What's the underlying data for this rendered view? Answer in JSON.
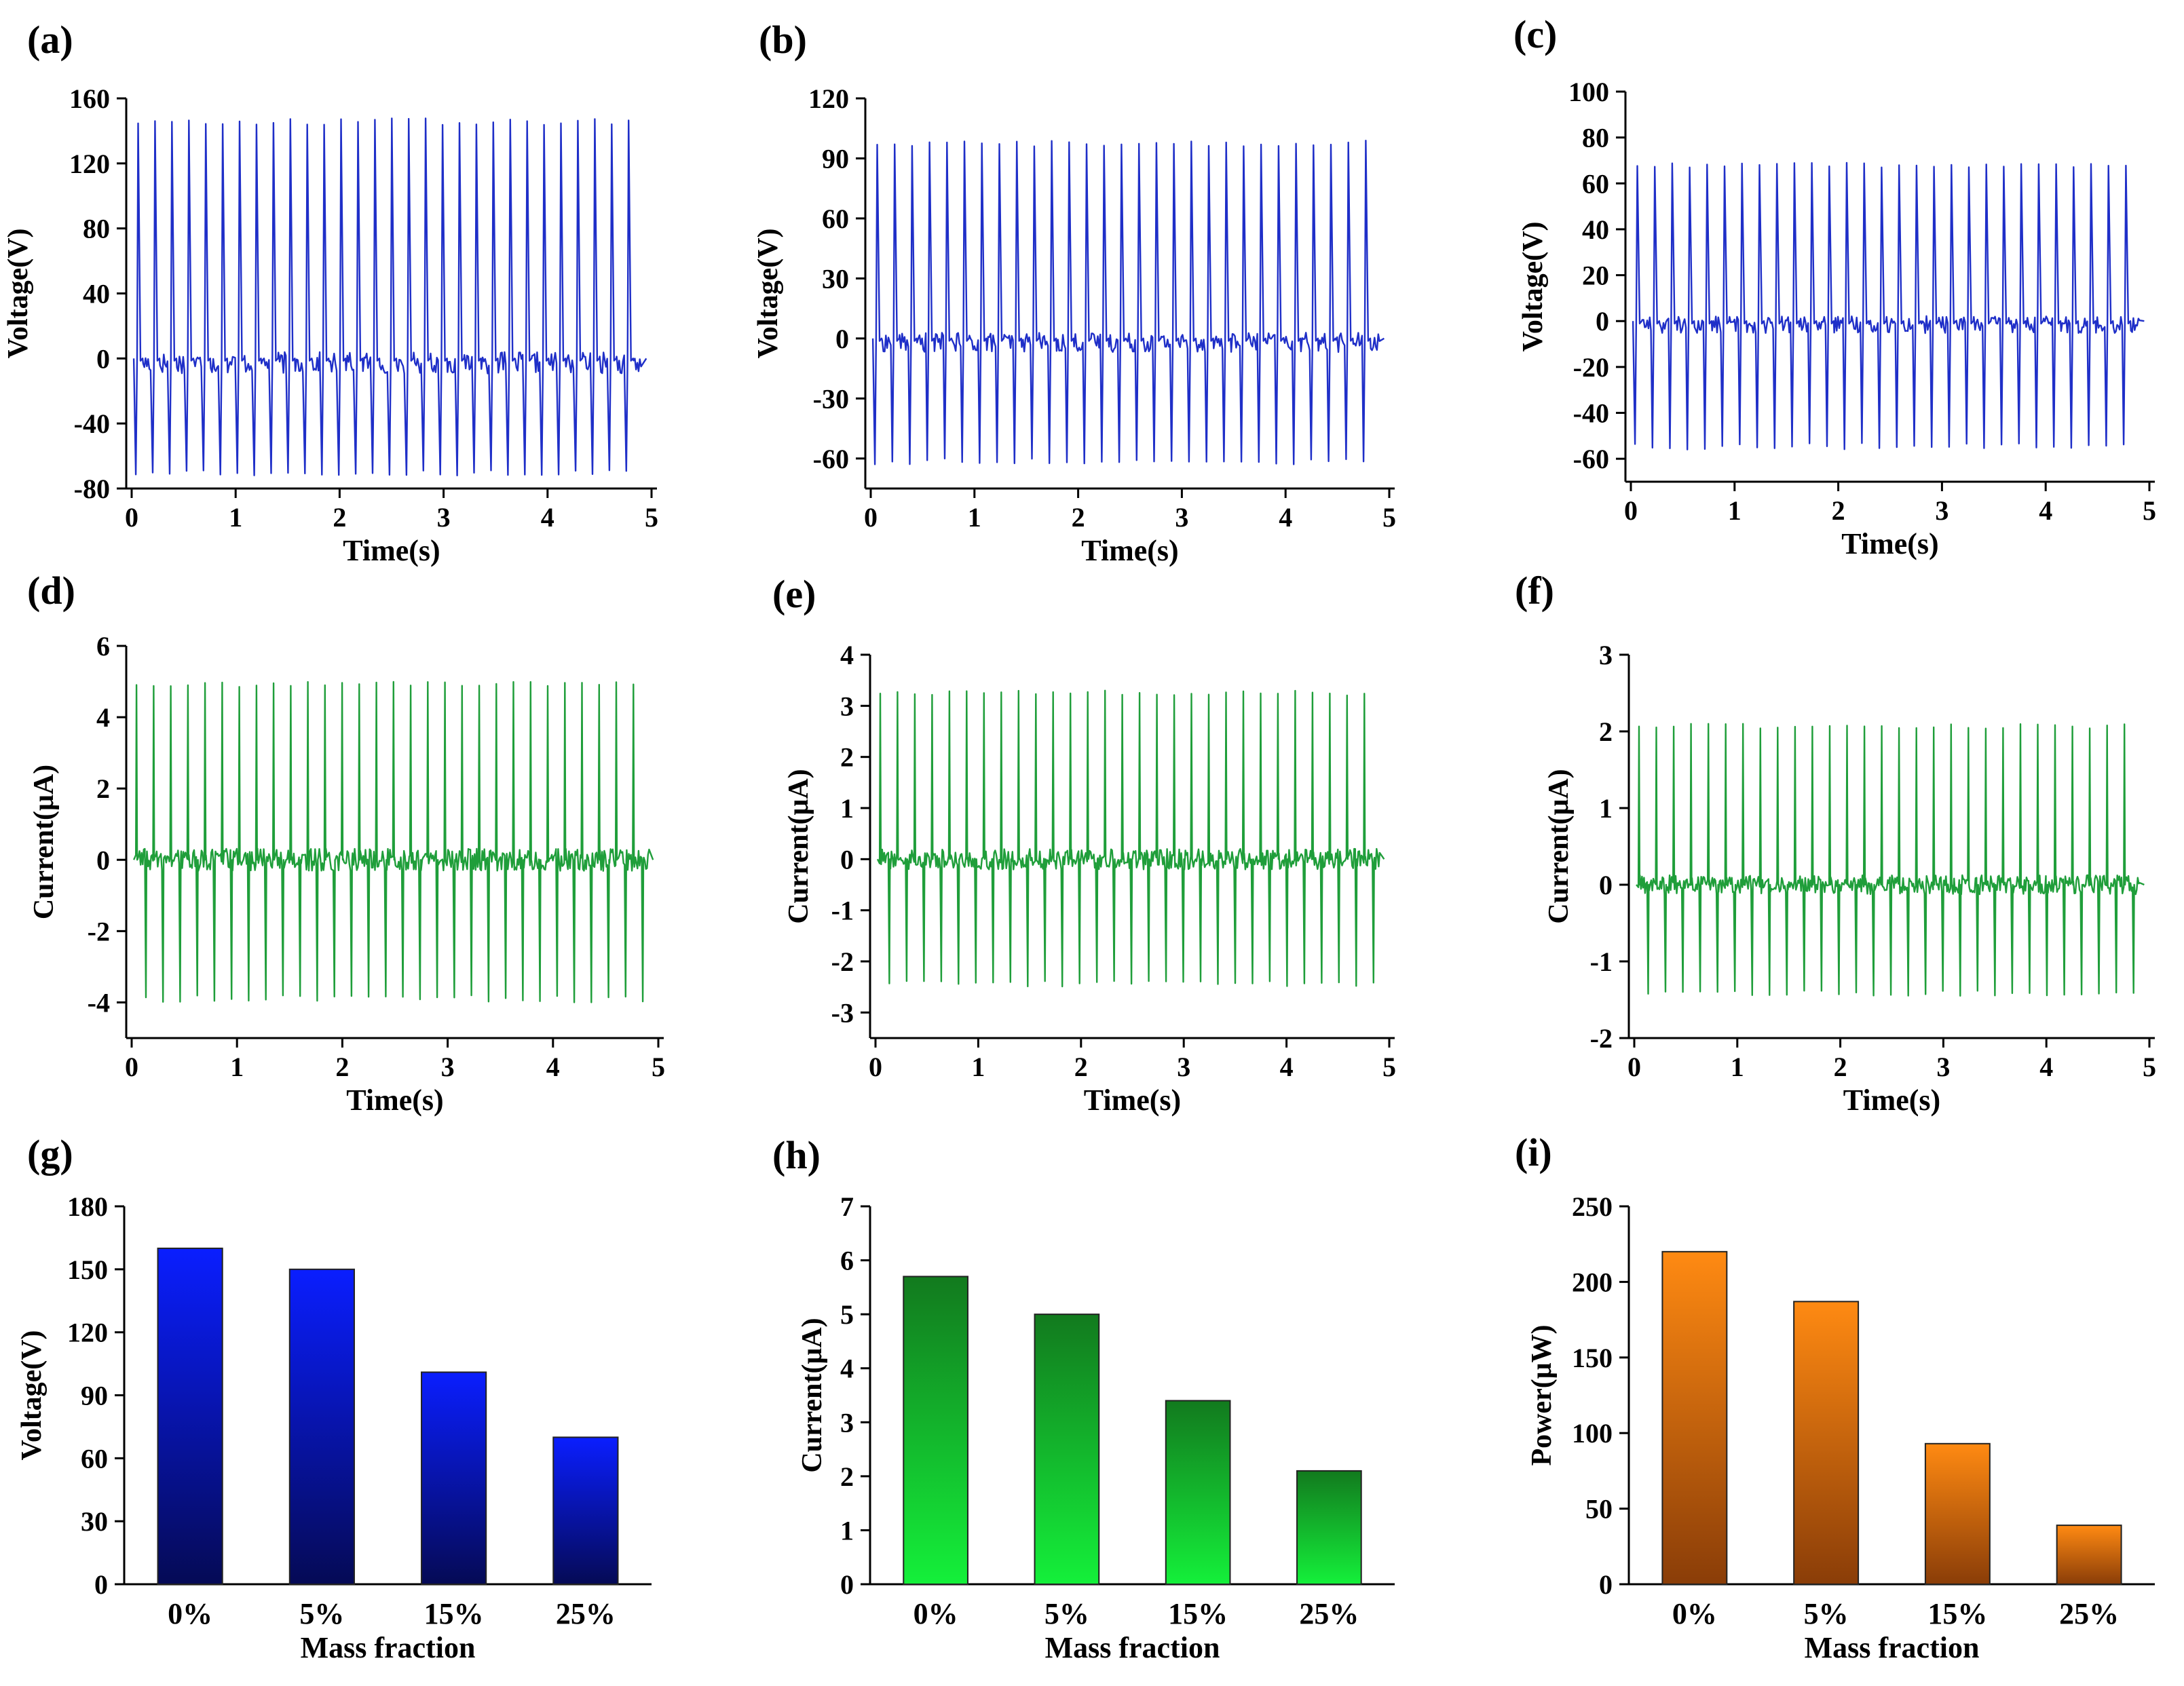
{
  "chart_data": [
    {
      "id": "a",
      "type": "line",
      "panel_label": "(a)",
      "signal": "voltage",
      "color": "#1f2fc8",
      "xlabel": "Time(s)",
      "ylabel": "Voltage(V)",
      "xlim": [
        0,
        5
      ],
      "ylim": [
        -80,
        160
      ],
      "xticks": [
        0,
        1,
        2,
        3,
        4,
        5
      ],
      "yticks": [
        -80,
        -40,
        0,
        40,
        80,
        120,
        160
      ],
      "pulse_count": 30,
      "peak_max": 148,
      "peak_min": -72
    },
    {
      "id": "b",
      "type": "line",
      "panel_label": "(b)",
      "signal": "voltage",
      "color": "#1f2fc8",
      "xlabel": "Time(s)",
      "ylabel": "Voltage(V)",
      "xlim": [
        0,
        5
      ],
      "ylim": [
        -75,
        120
      ],
      "xticks": [
        0,
        1,
        2,
        3,
        4,
        5
      ],
      "yticks": [
        -60,
        -30,
        0,
        30,
        60,
        90,
        120
      ],
      "pulse_count": 29,
      "peak_max": 99,
      "peak_min": -63
    },
    {
      "id": "c",
      "type": "line",
      "panel_label": "(c)",
      "signal": "voltage",
      "color": "#1f2fc8",
      "xlabel": "Time(s)",
      "ylabel": "Voltage(V)",
      "xlim": [
        0,
        5
      ],
      "ylim": [
        -70,
        100
      ],
      "xticks": [
        0,
        1,
        2,
        3,
        4,
        5
      ],
      "yticks": [
        -60,
        -40,
        -20,
        0,
        20,
        40,
        60,
        80,
        100
      ],
      "pulse_count": 29,
      "peak_max": 69,
      "peak_min": -56
    },
    {
      "id": "d",
      "type": "line",
      "panel_label": "(d)",
      "signal": "current",
      "color": "#1f9e3a",
      "xlabel": "Time(s)",
      "ylabel": "Current(μA)",
      "xlim": [
        0,
        5
      ],
      "ylim": [
        -5,
        6
      ],
      "xticks": [
        0,
        1,
        2,
        3,
        4,
        5
      ],
      "yticks": [
        -4,
        -2,
        0,
        2,
        4,
        6
      ],
      "pulse_count": 30,
      "peak_max": 5.0,
      "peak_min": -4.0
    },
    {
      "id": "e",
      "type": "line",
      "panel_label": "(e)",
      "signal": "current",
      "color": "#1f9e3a",
      "xlabel": "Time(s)",
      "ylabel": "Current(μA)",
      "xlim": [
        0,
        5
      ],
      "ylim": [
        -3.5,
        4
      ],
      "xticks": [
        0,
        1,
        2,
        3,
        4,
        5
      ],
      "yticks": [
        -3,
        -2,
        -1,
        0,
        1,
        2,
        3,
        4
      ],
      "pulse_count": 29,
      "peak_max": 3.3,
      "peak_min": -2.5
    },
    {
      "id": "f",
      "type": "line",
      "panel_label": "(f)",
      "signal": "current",
      "color": "#1f9e3a",
      "xlabel": "Time(s)",
      "ylabel": "Current(μA)",
      "xlim": [
        0,
        5
      ],
      "ylim": [
        -2,
        3
      ],
      "xticks": [
        0,
        1,
        2,
        3,
        4,
        5
      ],
      "yticks": [
        -2,
        -1,
        0,
        1,
        2,
        3
      ],
      "pulse_count": 29,
      "peak_max": 2.1,
      "peak_min": -1.45
    },
    {
      "id": "g",
      "type": "bar",
      "panel_label": "(g)",
      "xlabel": "Mass fraction",
      "ylabel": "Voltage(V)",
      "categories": [
        "0%",
        "5%",
        "15%",
        "25%"
      ],
      "values": [
        160,
        150,
        101,
        70
      ],
      "ylim": [
        0,
        180
      ],
      "yticks": [
        0,
        30,
        60,
        90,
        120,
        150,
        180
      ],
      "gradient_top": "#0a1eff",
      "gradient_bottom": "#050a55"
    },
    {
      "id": "h",
      "type": "bar",
      "panel_label": "(h)",
      "xlabel": "Mass fraction",
      "ylabel": "Current(μA)",
      "categories": [
        "0%",
        "5%",
        "15%",
        "25%"
      ],
      "values": [
        5.7,
        5.0,
        3.4,
        2.1
      ],
      "ylim": [
        0,
        7
      ],
      "yticks": [
        0,
        1,
        2,
        3,
        4,
        5,
        6,
        7
      ],
      "gradient_top": "#127a1e",
      "gradient_bottom": "#14f03a"
    },
    {
      "id": "i",
      "type": "bar",
      "panel_label": "(i)",
      "xlabel": "Mass fraction",
      "ylabel": "Power(μW)",
      "categories": [
        "0%",
        "5%",
        "15%",
        "25%"
      ],
      "values": [
        220,
        187,
        93,
        39
      ],
      "ylim": [
        0,
        250
      ],
      "yticks": [
        0,
        50,
        100,
        150,
        200,
        250
      ],
      "gradient_top": "#ff8a12",
      "gradient_bottom": "#8a3d08"
    }
  ]
}
